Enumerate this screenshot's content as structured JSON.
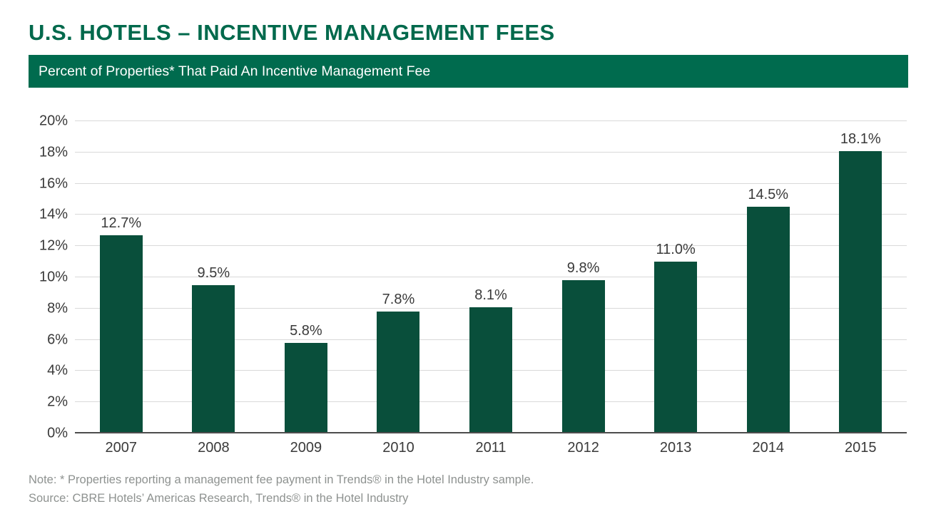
{
  "page": {
    "title": "U.S. HOTELS – INCENTIVE MANAGEMENT FEES",
    "banner": "Percent of Properties* That Paid An Incentive Management Fee",
    "note": "Note: * Properties reporting a management fee payment in Trends® in the Hotel Industry sample.",
    "source": "Source: CBRE Hotels’ Americas Research, Trends® in the Hotel Industry"
  },
  "colors": {
    "title_green": "#00694C",
    "banner_green": "#006B4E",
    "bar_green": "#094F3B",
    "tick_label_gray": "#3A3A3A",
    "note_gray": "#8E9290",
    "gridline_gray": "#D9D9D9",
    "axis_line_gray": "#4D4D4D"
  },
  "chart_data": {
    "type": "bar",
    "title": "Percent of Properties* That Paid An Incentive Management Fee",
    "categories": [
      "2007",
      "2008",
      "2009",
      "2010",
      "2011",
      "2012",
      "2013",
      "2014",
      "2015"
    ],
    "values": [
      12.7,
      9.5,
      5.8,
      7.8,
      8.1,
      9.8,
      11.0,
      14.5,
      18.1
    ],
    "value_labels": [
      "12.7%",
      "9.5%",
      "5.8%",
      "7.8%",
      "8.1%",
      "9.8%",
      "11.0%",
      "14.5%",
      "18.1%"
    ],
    "xlabel": "",
    "ylabel": "",
    "ylim": [
      0,
      20
    ],
    "ytick_step": 2,
    "ytick_labels": [
      "0%",
      "2%",
      "4%",
      "6%",
      "8%",
      "10%",
      "12%",
      "14%",
      "16%",
      "18%",
      "20%"
    ],
    "grid": "horizontal",
    "legend": "none"
  }
}
